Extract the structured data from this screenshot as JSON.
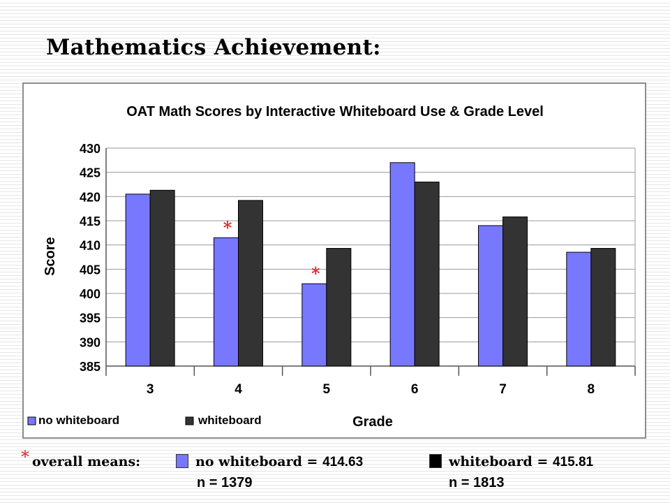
{
  "slide": {
    "title": "Mathematics Achievement:"
  },
  "chart_data": {
    "type": "bar",
    "title": "OAT Math Scores by Interactive Whiteboard Use & Grade Level",
    "xlabel": "Grade",
    "ylabel": "Score",
    "categories": [
      "3",
      "4",
      "5",
      "6",
      "7",
      "8"
    ],
    "ylim": [
      385,
      430
    ],
    "yticks": [
      385,
      390,
      395,
      400,
      405,
      410,
      415,
      420,
      425,
      430
    ],
    "grid": true,
    "legend_position": "bottom-left",
    "series": [
      {
        "name": "no whiteboard",
        "color": "#7878ff",
        "values": [
          420.5,
          411.5,
          402.0,
          427.0,
          414.0,
          408.5
        ]
      },
      {
        "name": "whiteboard",
        "color": "#333333",
        "values": [
          421.3,
          419.2,
          409.3,
          423.0,
          415.8,
          409.3
        ]
      }
    ],
    "annotations": [
      {
        "text": "*",
        "category": "4",
        "series": "no whiteboard",
        "color": "#e0262a"
      },
      {
        "text": "*",
        "category": "5",
        "series": "no whiteboard",
        "color": "#e0262a"
      }
    ]
  },
  "footer": {
    "star": "*",
    "lead": "overall means:",
    "no_wb_label": "no whiteboard = ",
    "no_wb_value": "414.63",
    "no_wb_n": "n = 1379",
    "wb_label": "whiteboard = ",
    "wb_value": "415.81",
    "wb_n": "n = 1813"
  }
}
